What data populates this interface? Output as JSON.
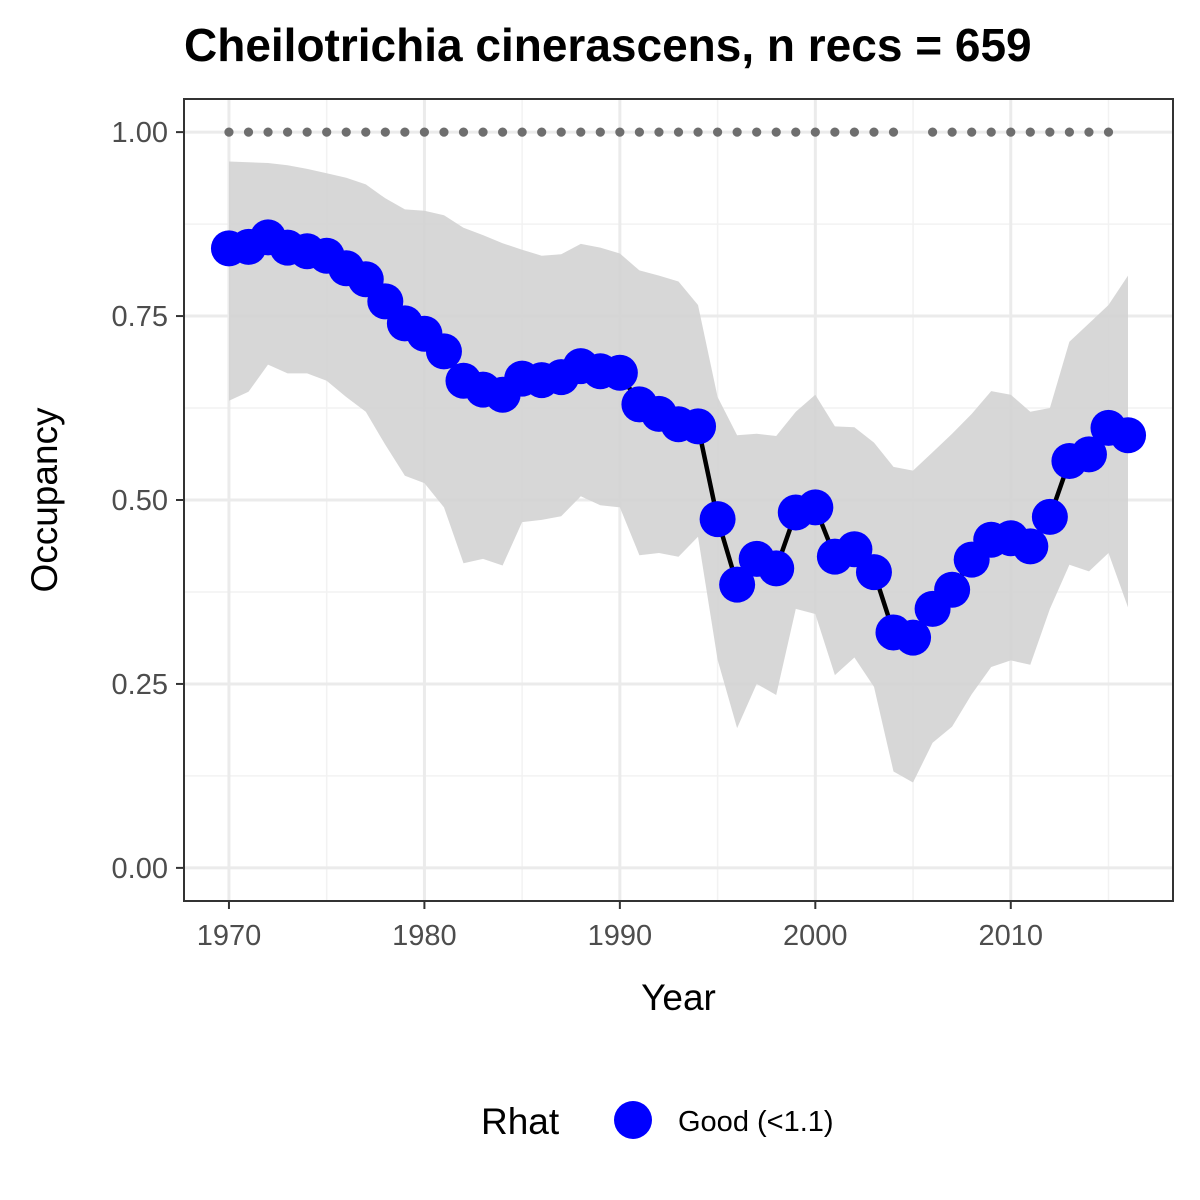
{
  "chart_data": {
    "type": "line",
    "title": "Cheilotrichia cinerascens, n recs = 659",
    "xlabel": "Year",
    "ylabel": "Occupancy",
    "xlim": [
      1967.7,
      1918.3
    ],
    "ylim": [
      -0.045,
      1.045
    ],
    "x_ticks": [
      1970,
      1980,
      1990,
      2000,
      2010
    ],
    "x_tick_labels": [
      "1970",
      "1980",
      "1990",
      "2000",
      "2010"
    ],
    "y_ticks": [
      0,
      0.25,
      0.5,
      0.75,
      1.0
    ],
    "y_tick_labels": [
      "0.00",
      "0.25",
      "0.50",
      "0.75",
      "1.00"
    ],
    "grid": true,
    "x": [
      1970,
      1971,
      1972,
      1973,
      1974,
      1975,
      1976,
      1977,
      1978,
      1979,
      1980,
      1981,
      1982,
      1983,
      1984,
      1985,
      1986,
      1987,
      1988,
      1989,
      1990,
      1991,
      1992,
      1993,
      1994,
      1995,
      1996,
      1997,
      1998,
      1999,
      2000,
      2001,
      2002,
      2003,
      2004,
      2005,
      2006,
      2007,
      2008,
      2009,
      2010,
      2011,
      2012,
      2013,
      2014,
      2015,
      2016
    ],
    "series": [
      {
        "name": "Good (<1.1)",
        "color": "#0000ff",
        "values": [
          0.842,
          0.844,
          0.857,
          0.843,
          0.838,
          0.832,
          0.815,
          0.8,
          0.77,
          0.74,
          0.726,
          0.702,
          0.662,
          0.65,
          0.643,
          0.665,
          0.663,
          0.667,
          0.682,
          0.675,
          0.673,
          0.63,
          0.617,
          0.603,
          0.6,
          0.474,
          0.385,
          0.42,
          0.407,
          0.483,
          0.49,
          0.423,
          0.433,
          0.402,
          0.32,
          0.313,
          0.352,
          0.378,
          0.419,
          0.446,
          0.448,
          0.437,
          0.477,
          0.553,
          0.562,
          0.598,
          0.588
        ]
      }
    ],
    "ci_upper": [
      0.96,
      0.959,
      0.958,
      0.955,
      0.95,
      0.944,
      0.938,
      0.929,
      0.91,
      0.895,
      0.893,
      0.887,
      0.87,
      0.86,
      0.849,
      0.84,
      0.832,
      0.834,
      0.848,
      0.843,
      0.835,
      0.812,
      0.805,
      0.797,
      0.765,
      0.64,
      0.588,
      0.59,
      0.587,
      0.62,
      0.643,
      0.6,
      0.599,
      0.578,
      0.545,
      0.54,
      0.565,
      0.59,
      0.617,
      0.648,
      0.643,
      0.62,
      0.625,
      0.715,
      0.74,
      0.765,
      0.805
    ],
    "ci_lower": [
      0.635,
      0.647,
      0.684,
      0.672,
      0.672,
      0.662,
      0.64,
      0.62,
      0.575,
      0.533,
      0.523,
      0.49,
      0.414,
      0.42,
      0.411,
      0.47,
      0.473,
      0.478,
      0.505,
      0.493,
      0.49,
      0.425,
      0.428,
      0.423,
      0.45,
      0.283,
      0.19,
      0.25,
      0.235,
      0.352,
      0.345,
      0.262,
      0.286,
      0.246,
      0.131,
      0.116,
      0.17,
      0.192,
      0.236,
      0.273,
      0.282,
      0.276,
      0.352,
      0.412,
      0.403,
      0.428,
      0.354
    ],
    "ci_color": "#d3d3d3",
    "detection_x": [
      1970,
      1971,
      1972,
      1973,
      1974,
      1975,
      1976,
      1977,
      1978,
      1979,
      1980,
      1981,
      1982,
      1983,
      1984,
      1985,
      1986,
      1987,
      1988,
      1989,
      1990,
      1991,
      1992,
      1993,
      1994,
      1995,
      1996,
      1997,
      1998,
      1999,
      2000,
      2001,
      2002,
      2003,
      2004,
      2006,
      2007,
      2008,
      2009,
      2010,
      2011,
      2012,
      2013,
      2014,
      2015
    ],
    "detection_y": 1.0,
    "detection_color": "#6e6e6e",
    "line_color": "#000000",
    "legend": {
      "title": "Rhat",
      "label": "Good (<1.1)",
      "color": "#0000ff",
      "position": "bottom"
    }
  }
}
